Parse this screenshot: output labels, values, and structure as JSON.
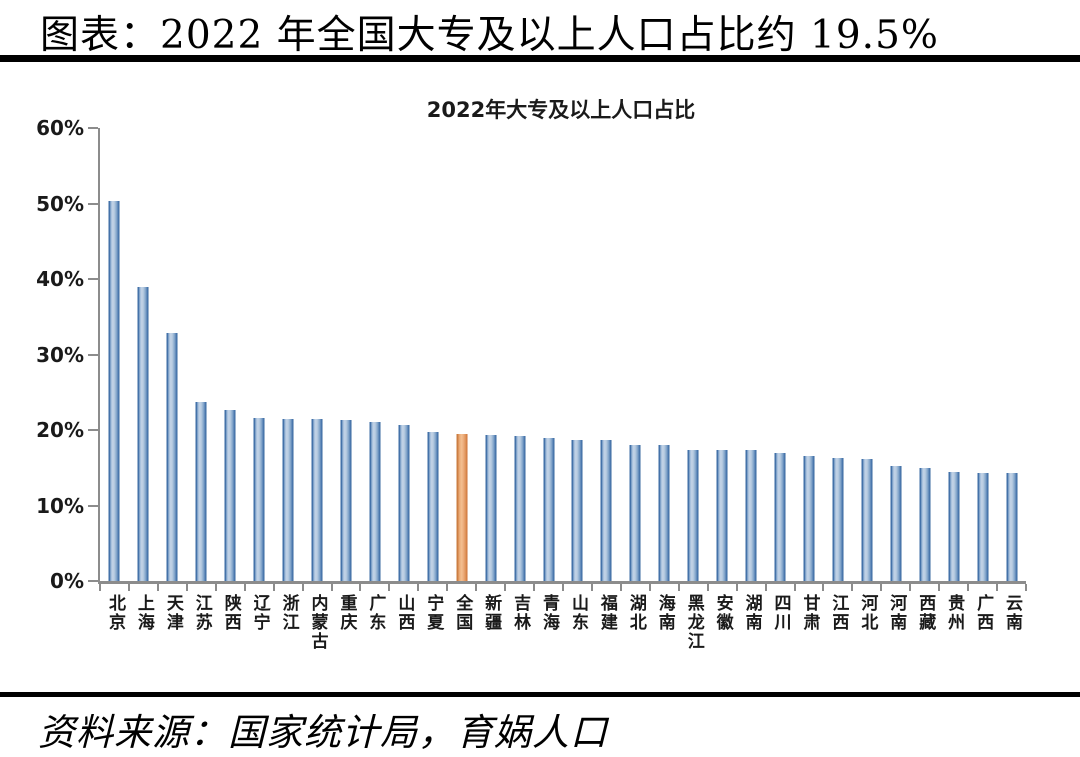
{
  "header": {
    "title": "图表：2022 年全国大专及以上人口占比约 19.5%"
  },
  "footer": {
    "source": "资料来源：国家统计局，育娲人口"
  },
  "chart_data": {
    "type": "bar",
    "title": "2022年大专及以上人口占比",
    "categories": [
      "北京",
      "上海",
      "天津",
      "江苏",
      "陕西",
      "辽宁",
      "浙江",
      "内蒙古",
      "重庆",
      "广东",
      "山西",
      "宁夏",
      "全国",
      "新疆",
      "吉林",
      "青海",
      "山东",
      "福建",
      "湖北",
      "海南",
      "黑龙江",
      "安徽",
      "湖南",
      "四川",
      "甘肃",
      "江西",
      "河北",
      "河南",
      "西藏",
      "贵州",
      "广西",
      "云南"
    ],
    "values": [
      50.3,
      39.0,
      32.8,
      23.7,
      22.7,
      21.6,
      21.5,
      21.5,
      21.3,
      21.1,
      20.6,
      19.7,
      19.5,
      19.4,
      19.2,
      18.9,
      18.7,
      18.7,
      18.0,
      18.0,
      17.4,
      17.3,
      17.3,
      17.0,
      16.5,
      16.3,
      16.2,
      15.2,
      15.0,
      14.5,
      14.3,
      14.3
    ],
    "unit": "%",
    "highlight_category": "全国",
    "ylim": [
      0,
      60
    ],
    "y_tick_step": 10,
    "y_tick_labels": [
      "0%",
      "10%",
      "20%",
      "30%",
      "40%",
      "50%",
      "60%"
    ],
    "grid": "off",
    "legend": "none",
    "bar_color_fill": "#8aabce",
    "bar_color_edge": "#3e6ea6",
    "highlight_color_fill": "#f0b584",
    "highlight_color_edge": "#cb7c40",
    "axis_color": "#8c8c8c"
  }
}
